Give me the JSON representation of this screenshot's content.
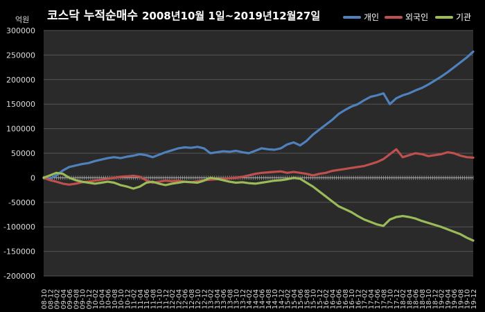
{
  "chart_data": {
    "type": "line",
    "title_main": "코스닥 누적순매수",
    "title_sub": "2008년10월 1일~2019년12월27일",
    "unit_label": "억원",
    "ylim": [
      -200000,
      300000
    ],
    "yticks": [
      "300000",
      "250000",
      "200000",
      "150000",
      "100000",
      "50000",
      "0",
      "-50000",
      "-100000",
      "-150000",
      "-200000"
    ],
    "grid": true,
    "legend_position": "top-right",
    "x_tick_labels": [
      "08-10",
      "08-12",
      "09-02",
      "09-04",
      "09-06",
      "09-08",
      "09-10",
      "09-12",
      "10-02",
      "10-04",
      "10-06",
      "10-08",
      "10-10",
      "10-12",
      "11-02",
      "11-04",
      "11-06",
      "11-08",
      "11-10",
      "11-12",
      "12-02",
      "12-04",
      "12-06",
      "12-08",
      "12-10",
      "12-12",
      "13-02",
      "13-04",
      "13-06",
      "13-08",
      "13-10",
      "13-12",
      "14-02",
      "14-04",
      "14-06",
      "14-08",
      "14-10",
      "14-12",
      "15-02",
      "15-04",
      "15-06",
      "15-08",
      "15-10",
      "15-12",
      "16-02",
      "16-04",
      "16-06",
      "16-08",
      "16-10",
      "16-12",
      "17-02",
      "17-04",
      "17-06",
      "17-08",
      "17-10",
      "17-12",
      "18-02",
      "18-04",
      "18-06",
      "18-08",
      "18-10",
      "18-12",
      "19-02",
      "19-04",
      "19-06",
      "19-08",
      "19-10",
      "19-12"
    ],
    "series": [
      {
        "name": "개인",
        "color": "#4f81bd",
        "values": [
          0,
          -2000,
          5000,
          15000,
          22000,
          25000,
          28000,
          30000,
          34000,
          37000,
          40000,
          42000,
          40000,
          43000,
          45000,
          48000,
          46000,
          42000,
          47000,
          52000,
          56000,
          60000,
          62000,
          61000,
          63000,
          60000,
          50000,
          52000,
          54000,
          53000,
          55000,
          52000,
          50000,
          55000,
          60000,
          58000,
          57000,
          60000,
          68000,
          72000,
          66000,
          75000,
          88000,
          98000,
          108000,
          118000,
          130000,
          138000,
          145000,
          150000,
          158000,
          165000,
          168000,
          172000,
          150000,
          162000,
          168000,
          172000,
          178000,
          183000,
          190000,
          198000,
          206000,
          215000,
          225000,
          235000,
          245000,
          257000
        ]
      },
      {
        "name": "외국인",
        "color": "#c0504d",
        "values": [
          0,
          -5000,
          -8000,
          -12000,
          -14000,
          -12000,
          -9000,
          -8000,
          -6000,
          -4000,
          -2000,
          0,
          2000,
          3000,
          4000,
          2000,
          -5000,
          -10000,
          -8000,
          -6000,
          -7000,
          -6000,
          -8000,
          -9000,
          -7000,
          -5000,
          -4000,
          -3000,
          -2000,
          -1000,
          0,
          2000,
          5000,
          8000,
          10000,
          11000,
          12000,
          13000,
          10000,
          12000,
          10000,
          8000,
          5000,
          8000,
          10000,
          14000,
          16000,
          18000,
          20000,
          22000,
          24000,
          28000,
          32000,
          38000,
          48000,
          58000,
          42000,
          46000,
          50000,
          48000,
          44000,
          46000,
          48000,
          52000,
          50000,
          45000,
          42000,
          41000
        ]
      },
      {
        "name": "기관",
        "color": "#9bbb59",
        "values": [
          0,
          5000,
          10000,
          8000,
          0,
          -5000,
          -8000,
          -10000,
          -12000,
          -10000,
          -8000,
          -10000,
          -15000,
          -18000,
          -22000,
          -18000,
          -10000,
          -8000,
          -12000,
          -15000,
          -12000,
          -10000,
          -8000,
          -9000,
          -10000,
          -6000,
          0,
          -2000,
          -5000,
          -8000,
          -10000,
          -9000,
          -11000,
          -12000,
          -10000,
          -8000,
          -6000,
          -5000,
          -3000,
          0,
          -2000,
          -10000,
          -18000,
          -28000,
          -38000,
          -48000,
          -58000,
          -64000,
          -70000,
          -78000,
          -85000,
          -90000,
          -95000,
          -98000,
          -85000,
          -80000,
          -78000,
          -80000,
          -83000,
          -88000,
          -92000,
          -96000,
          -100000,
          -105000,
          -110000,
          -115000,
          -122000,
          -128000
        ]
      }
    ]
  }
}
